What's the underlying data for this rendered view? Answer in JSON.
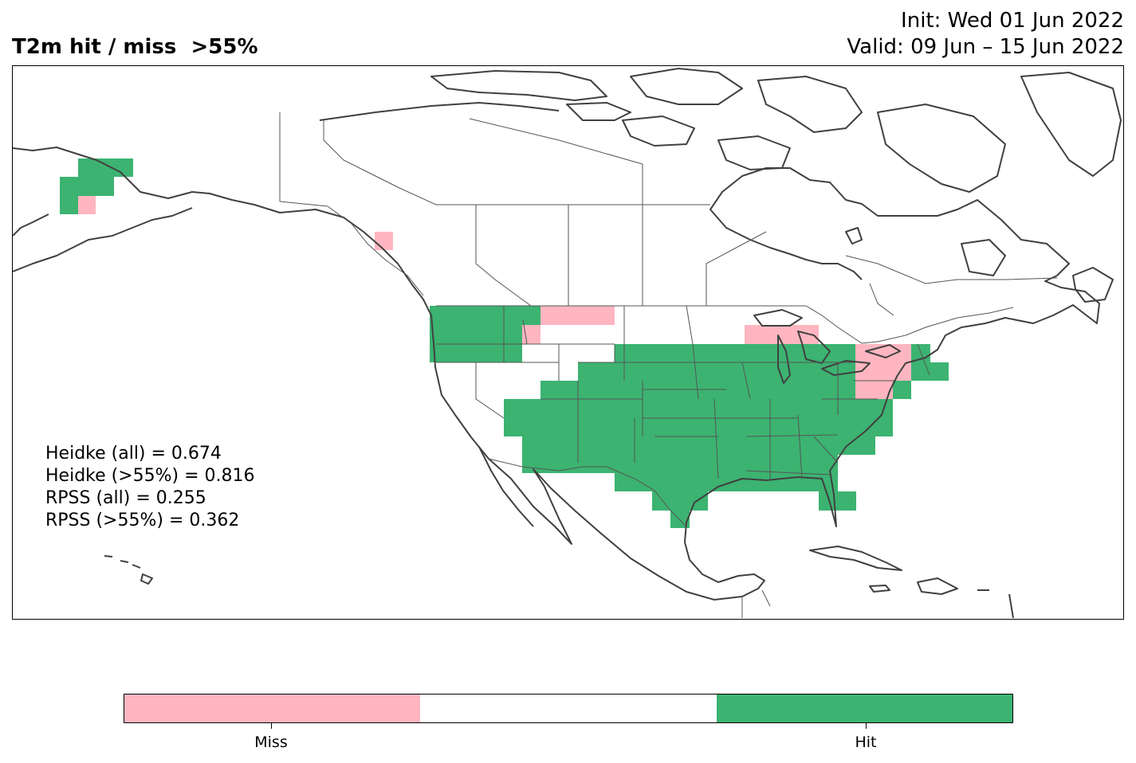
{
  "header": {
    "title": "T2m hit / miss  >55%",
    "init": "Init: Wed 01 Jun 2022",
    "valid": "Valid: 09 Jun – 15 Jun 2022"
  },
  "stats": [
    "Heidke (all) = 0.674",
    "Heidke (>55%) = 0.816",
    "RPSS (all) = 0.255",
    "RPSS (>55%) = 0.362"
  ],
  "legend": {
    "categories": [
      {
        "label": "Miss",
        "color": "#ffb6c1"
      },
      {
        "label": "",
        "color": "#ffffff"
      },
      {
        "label": "Hit",
        "color": "#3cb371"
      }
    ]
  },
  "colors": {
    "hit": "#3cb371",
    "miss": "#ffb6c1",
    "coast": "#404040",
    "border": "#555555"
  }
}
